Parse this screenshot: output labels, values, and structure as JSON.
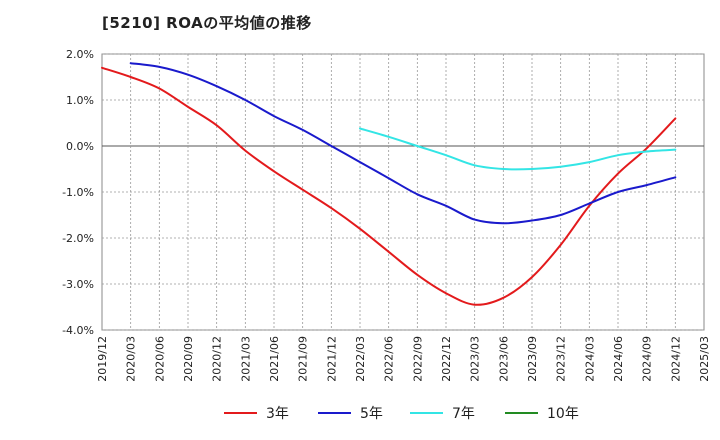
{
  "chart_data": {
    "type": "line",
    "title": "[5210]  ROAの平均値の推移",
    "xlabel": "",
    "ylabel": "",
    "ylim": [
      -4.0,
      2.0
    ],
    "y_ticks": [
      2.0,
      1.0,
      0.0,
      -1.0,
      -2.0,
      -3.0,
      -4.0
    ],
    "y_tick_labels": [
      "2.0%",
      "1.0%",
      "0.0%",
      "-1.0%",
      "-2.0%",
      "-3.0%",
      "-4.0%"
    ],
    "x_ticks": [
      "2019/12",
      "2020/03",
      "2020/06",
      "2020/09",
      "2020/12",
      "2021/03",
      "2021/06",
      "2021/09",
      "2021/12",
      "2022/03",
      "2022/06",
      "2022/09",
      "2022/12",
      "2023/03",
      "2023/06",
      "2023/09",
      "2023/12",
      "2024/03",
      "2024/06",
      "2024/09",
      "2024/12",
      "2025/03"
    ],
    "grid": true,
    "legend_position": "bottom",
    "series": [
      {
        "name": "3年",
        "color": "#e31a1c",
        "x": [
          "2019/12",
          "2020/03",
          "2020/06",
          "2020/09",
          "2020/12",
          "2021/03",
          "2021/06",
          "2021/09",
          "2021/12",
          "2022/03",
          "2022/06",
          "2022/09",
          "2022/12",
          "2023/03",
          "2023/06",
          "2023/09",
          "2023/12",
          "2024/03",
          "2024/06",
          "2024/09",
          "2024/12"
        ],
        "values": [
          1.7,
          1.5,
          1.25,
          0.85,
          0.45,
          -0.1,
          -0.55,
          -0.95,
          -1.35,
          -1.8,
          -2.3,
          -2.8,
          -3.2,
          -3.45,
          -3.3,
          -2.85,
          -2.15,
          -1.3,
          -0.6,
          -0.05,
          0.6
        ]
      },
      {
        "name": "5年",
        "color": "#1a1acc",
        "x": [
          "2020/03",
          "2020/06",
          "2020/09",
          "2020/12",
          "2021/03",
          "2021/06",
          "2021/09",
          "2021/12",
          "2022/03",
          "2022/06",
          "2022/09",
          "2022/12",
          "2023/03",
          "2023/06",
          "2023/09",
          "2023/12",
          "2024/03",
          "2024/06",
          "2024/09",
          "2024/12"
        ],
        "values": [
          1.8,
          1.72,
          1.55,
          1.3,
          1.0,
          0.65,
          0.35,
          0.0,
          -0.35,
          -0.7,
          -1.05,
          -1.3,
          -1.6,
          -1.68,
          -1.62,
          -1.5,
          -1.25,
          -1.0,
          -0.85,
          -0.68
        ]
      },
      {
        "name": "7年",
        "color": "#33e5e5",
        "x": [
          "2022/03",
          "2022/06",
          "2022/09",
          "2022/12",
          "2023/03",
          "2023/06",
          "2023/09",
          "2023/12",
          "2024/03",
          "2024/06",
          "2024/09",
          "2024/12"
        ],
        "values": [
          0.38,
          0.2,
          0.0,
          -0.2,
          -0.42,
          -0.5,
          -0.5,
          -0.45,
          -0.35,
          -0.2,
          -0.12,
          -0.08
        ]
      },
      {
        "name": "10年",
        "color": "#228b22",
        "x": [],
        "values": []
      }
    ]
  }
}
